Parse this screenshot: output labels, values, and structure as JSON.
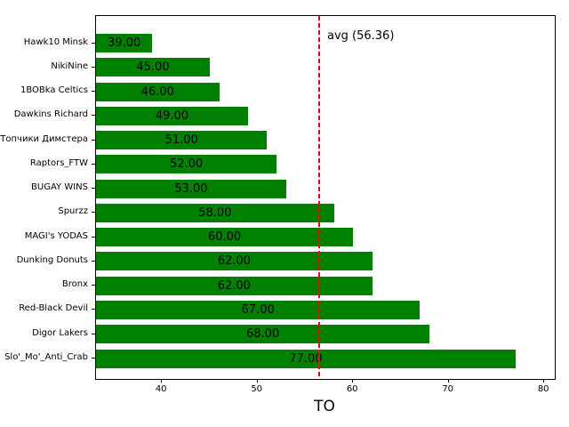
{
  "chart_data": {
    "type": "bar",
    "orientation": "horizontal",
    "title": "",
    "xlabel": "TO",
    "ylabel": "",
    "categories": [
      "Hawk10 Minsk",
      "NikiNine",
      "1BOBka Celtics",
      "Dawkins Richard",
      "Топчики Димстера",
      "Raptors_FTW",
      "BUGAY WINS",
      "Spurzz",
      "MAGI's YODAS",
      "Dunking Donuts",
      "Bronx",
      "Red-Black Devil",
      "Digor Lakers",
      "Slo'_Mo'_Anti_Crab"
    ],
    "values": [
      39,
      45,
      46,
      49,
      51,
      52,
      53,
      58,
      60,
      62,
      62,
      67,
      68,
      77
    ],
    "value_labels": [
      "39.00",
      "45.00",
      "46.00",
      "49.00",
      "51.00",
      "52.00",
      "53.00",
      "58.00",
      "60.00",
      "62.00",
      "62.00",
      "67.00",
      "68.00",
      "77.00"
    ],
    "bar_color": "#008000",
    "value_label_color": "#000000",
    "xlim": [
      33.1,
      81.1
    ],
    "x_ticks": [
      "40",
      "50",
      "60",
      "70",
      "80"
    ],
    "grid": false,
    "legend": null,
    "avg_line": {
      "value": 56.36,
      "label": "avg (56.36)",
      "color": "#ff0000",
      "linestyle": "dashed"
    }
  }
}
